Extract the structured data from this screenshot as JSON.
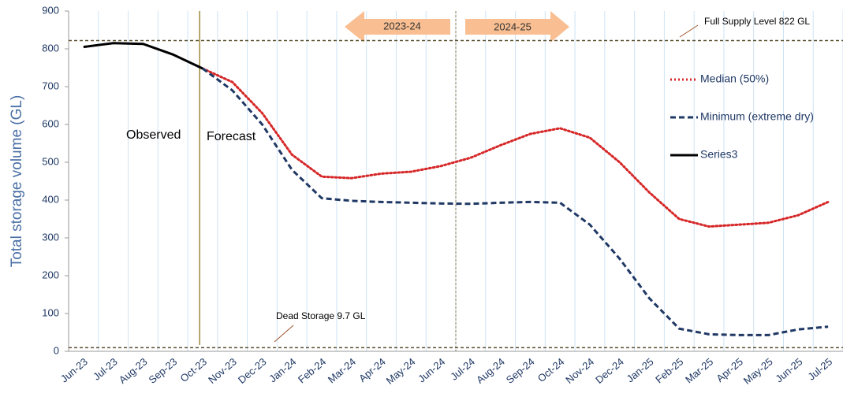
{
  "chart_data": {
    "type": "line",
    "y_label": "Total storage volume (GL)",
    "categories": [
      "Jun-23",
      "Jul-23",
      "Aug-23",
      "Sep-23",
      "Oct-23",
      "Nov-23",
      "Dec-23",
      "Jan-24",
      "Feb-24",
      "Mar-24",
      "Apr-24",
      "May-24",
      "Jun-24",
      "Jul-24",
      "Aug-24",
      "Sep-24",
      "Oct-24",
      "Nov-24",
      "Dec-24",
      "Jan-25",
      "Feb-25",
      "Mar-25",
      "Apr-25",
      "May-25",
      "Jun-25",
      "Jul-25"
    ],
    "series": [
      {
        "name": "Median (50%)",
        "color": "#d62728",
        "dash": "dotted",
        "values": [
          null,
          null,
          null,
          null,
          748,
          712,
          630,
          520,
          462,
          458,
          470,
          475,
          490,
          512,
          545,
          575,
          590,
          565,
          500,
          420,
          350,
          330,
          335,
          340,
          360,
          395
        ]
      },
      {
        "name": "Minimum (extreme dry)",
        "color": "#1f3864",
        "dash": "dashed",
        "values": [
          null,
          null,
          null,
          null,
          748,
          690,
          600,
          480,
          405,
          398,
          395,
          393,
          391,
          390,
          393,
          395,
          393,
          335,
          245,
          140,
          60,
          45,
          43,
          43,
          58,
          65
        ]
      },
      {
        "name": "Series3",
        "color": "#000000",
        "dash": "solid",
        "values": [
          805,
          815,
          813,
          785,
          748,
          null,
          null,
          null,
          null,
          null,
          null,
          null,
          null,
          null,
          null,
          null,
          null,
          null,
          null,
          null,
          null,
          null,
          null,
          null,
          null,
          null
        ]
      }
    ],
    "ylim": [
      0,
      900
    ],
    "yticks": [
      0,
      100,
      200,
      300,
      400,
      500,
      600,
      700,
      800,
      900
    ],
    "reference_lines": [
      {
        "value": 822,
        "label": "Full Supply  Level 822 GL"
      },
      {
        "value": 9.7,
        "label": "Dead Storage 9.7 GL"
      }
    ],
    "annotations": [
      "Observed",
      "Forecast",
      "2023-24",
      "2024-25"
    ]
  }
}
